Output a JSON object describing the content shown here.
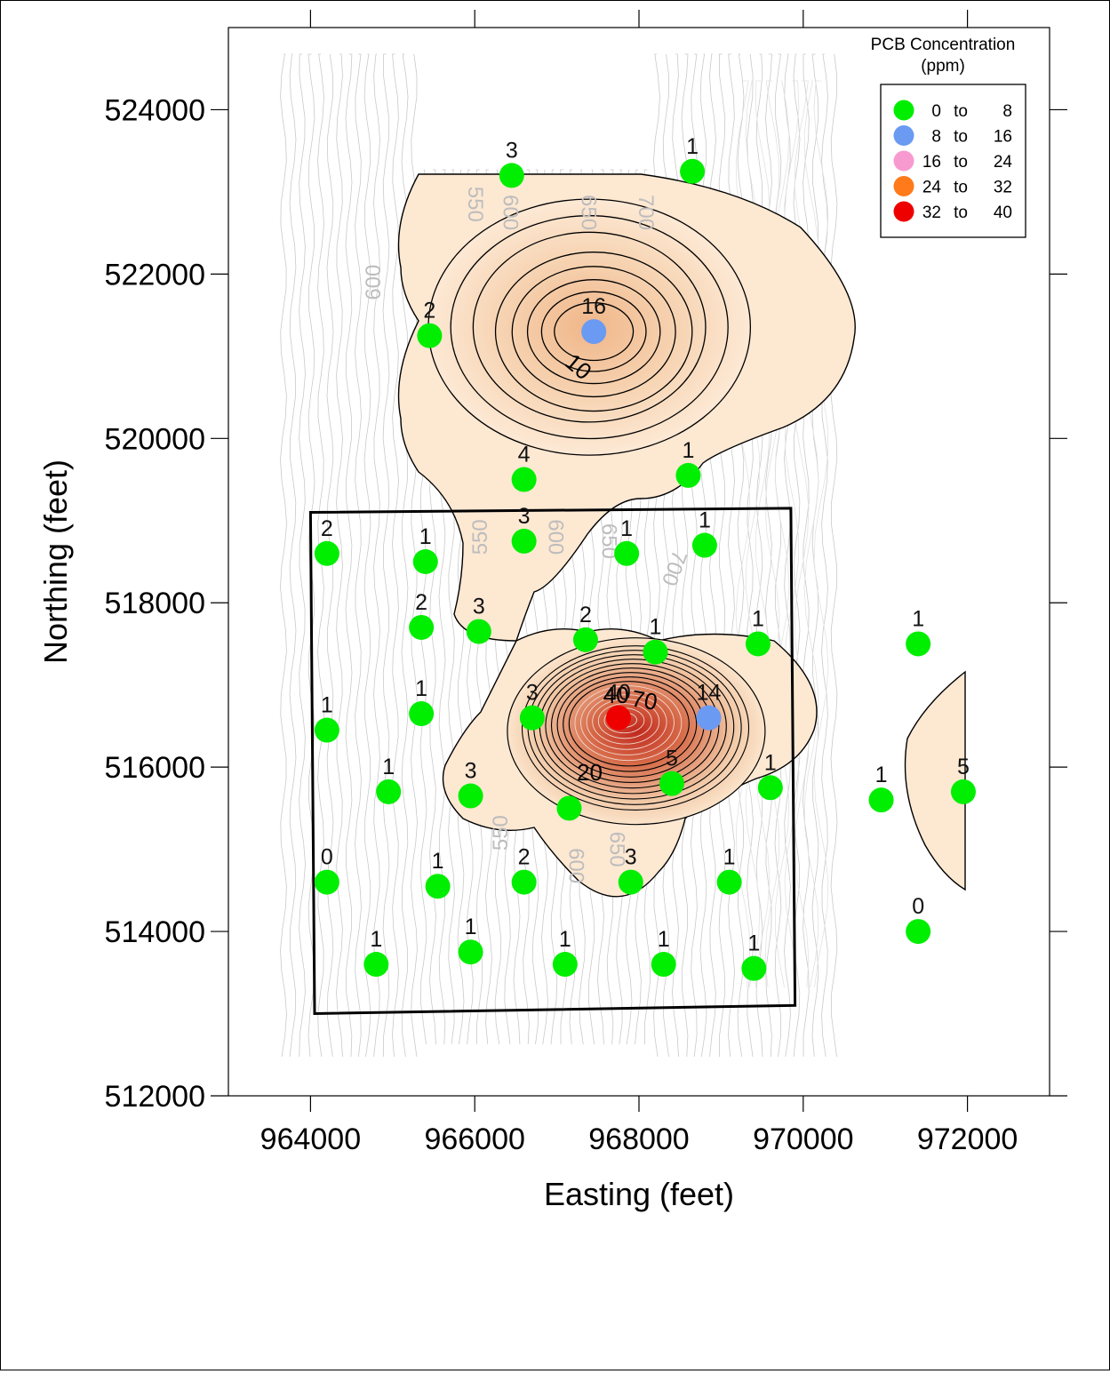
{
  "chart_data": {
    "type": "scatter",
    "xlabel": "Easting (feet)",
    "ylabel": "Northing (feet)",
    "xlim": [
      963000,
      973000
    ],
    "ylim": [
      512000,
      525000
    ],
    "x_ticks": [
      964000,
      966000,
      968000,
      970000,
      972000
    ],
    "y_ticks": [
      512000,
      514000,
      516000,
      518000,
      520000,
      522000,
      524000
    ],
    "x_tick_labels": [
      "964000",
      "966000",
      "968000",
      "970000",
      "972000"
    ],
    "y_tick_labels": [
      "512000",
      "514000",
      "516000",
      "518000",
      "520000",
      "522000",
      "524000"
    ],
    "grid": false,
    "legend": {
      "title": "PCB Concentration",
      "subtitle": "(ppm)",
      "placement": "top-right",
      "word": "to",
      "entries": [
        {
          "min": "0",
          "max": "8",
          "color": "#00ee00"
        },
        {
          "min": "8",
          "max": "16",
          "color": "#6b9af2"
        },
        {
          "min": "16",
          "max": "24",
          "color": "#f79ad0"
        },
        {
          "min": "24",
          "max": "32",
          "color": "#ff7a1a"
        },
        {
          "min": "32",
          "max": "40",
          "color": "#ee0000"
        }
      ]
    },
    "contour_labels": [
      {
        "text": "10",
        "x": 967200,
        "y": 520800,
        "angle": 40
      },
      {
        "text": "40",
        "x": 967720,
        "y": 516780,
        "angle": 0
      },
      {
        "text": "70",
        "x": 968050,
        "y": 516720,
        "angle": 10
      },
      {
        "text": "20",
        "x": 967400,
        "y": 515840,
        "angle": 0
      }
    ],
    "elevation_labels": [
      {
        "text": "550",
        "x": 965920,
        "y": 522850,
        "angle": 90
      },
      {
        "text": "600",
        "x": 966350,
        "y": 522750,
        "angle": 90
      },
      {
        "text": "650",
        "x": 967300,
        "y": 522750,
        "angle": 90
      },
      {
        "text": "700",
        "x": 968000,
        "y": 522750,
        "angle": 90
      },
      {
        "text": "600",
        "x": 964850,
        "y": 521900,
        "angle": -90
      },
      {
        "text": "550",
        "x": 966150,
        "y": 518800,
        "angle": -90
      },
      {
        "text": "600",
        "x": 966900,
        "y": 518800,
        "angle": 90
      },
      {
        "text": "650",
        "x": 967550,
        "y": 518750,
        "angle": 90
      },
      {
        "text": "700",
        "x": 968350,
        "y": 518450,
        "angle": 110
      },
      {
        "text": "550",
        "x": 966400,
        "y": 515200,
        "angle": -90
      },
      {
        "text": "600",
        "x": 967150,
        "y": 514800,
        "angle": 90
      },
      {
        "text": "650",
        "x": 967650,
        "y": 515000,
        "angle": 90
      }
    ],
    "site_boundary": [
      [
        964000,
        519100
      ],
      [
        969850,
        519150
      ],
      [
        969900,
        513100
      ],
      [
        964050,
        513000
      ]
    ],
    "points": [
      {
        "x": 966450,
        "y": 523200,
        "label": "3",
        "class": 0
      },
      {
        "x": 968650,
        "y": 523250,
        "label": "1",
        "class": 0
      },
      {
        "x": 965450,
        "y": 521250,
        "label": "2",
        "class": 0
      },
      {
        "x": 967450,
        "y": 521300,
        "label": "16",
        "class": 1
      },
      {
        "x": 966600,
        "y": 519500,
        "label": "4",
        "class": 0
      },
      {
        "x": 968600,
        "y": 519550,
        "label": "1",
        "class": 0
      },
      {
        "x": 964200,
        "y": 518600,
        "label": "2",
        "class": 0
      },
      {
        "x": 965400,
        "y": 518500,
        "label": "1",
        "class": 0
      },
      {
        "x": 966600,
        "y": 518750,
        "label": "3",
        "class": 0
      },
      {
        "x": 967850,
        "y": 518600,
        "label": "1",
        "class": 0
      },
      {
        "x": 968800,
        "y": 518700,
        "label": "1",
        "class": 0
      },
      {
        "x": 965350,
        "y": 517700,
        "label": "2",
        "class": 0
      },
      {
        "x": 966050,
        "y": 517650,
        "label": "3",
        "class": 0
      },
      {
        "x": 967350,
        "y": 517550,
        "label": "2",
        "class": 0
      },
      {
        "x": 968200,
        "y": 517400,
        "label": "1",
        "class": 0
      },
      {
        "x": 969450,
        "y": 517500,
        "label": "1",
        "class": 0
      },
      {
        "x": 971400,
        "y": 517500,
        "label": "1",
        "class": 0
      },
      {
        "x": 964200,
        "y": 516450,
        "label": "1",
        "class": 0
      },
      {
        "x": 965350,
        "y": 516650,
        "label": "1",
        "class": 0
      },
      {
        "x": 966700,
        "y": 516600,
        "label": "3",
        "class": 0
      },
      {
        "x": 967750,
        "y": 516600,
        "label": "40",
        "class": 4
      },
      {
        "x": 968850,
        "y": 516600,
        "label": "14",
        "class": 1
      },
      {
        "x": 964950,
        "y": 515700,
        "label": "1",
        "class": 0
      },
      {
        "x": 965950,
        "y": 515650,
        "label": "3",
        "class": 0
      },
      {
        "x": 967150,
        "y": 515500,
        "label": "",
        "class": 0
      },
      {
        "x": 968400,
        "y": 515800,
        "label": "5",
        "class": 0
      },
      {
        "x": 969600,
        "y": 515750,
        "label": "1",
        "class": 0
      },
      {
        "x": 970950,
        "y": 515600,
        "label": "1",
        "class": 0
      },
      {
        "x": 971950,
        "y": 515700,
        "label": "5",
        "class": 0
      },
      {
        "x": 964200,
        "y": 514600,
        "label": "0",
        "class": 0
      },
      {
        "x": 965550,
        "y": 514550,
        "label": "1",
        "class": 0
      },
      {
        "x": 966600,
        "y": 514600,
        "label": "2",
        "class": 0
      },
      {
        "x": 967900,
        "y": 514600,
        "label": "3",
        "class": 0
      },
      {
        "x": 969100,
        "y": 514600,
        "label": "1",
        "class": 0
      },
      {
        "x": 971400,
        "y": 514000,
        "label": "0",
        "class": 0
      },
      {
        "x": 964800,
        "y": 513600,
        "label": "1",
        "class": 0
      },
      {
        "x": 965950,
        "y": 513750,
        "label": "1",
        "class": 0
      },
      {
        "x": 967100,
        "y": 513600,
        "label": "1",
        "class": 0
      },
      {
        "x": 968300,
        "y": 513600,
        "label": "1",
        "class": 0
      },
      {
        "x": 969400,
        "y": 513550,
        "label": "1",
        "class": 0
      }
    ]
  }
}
